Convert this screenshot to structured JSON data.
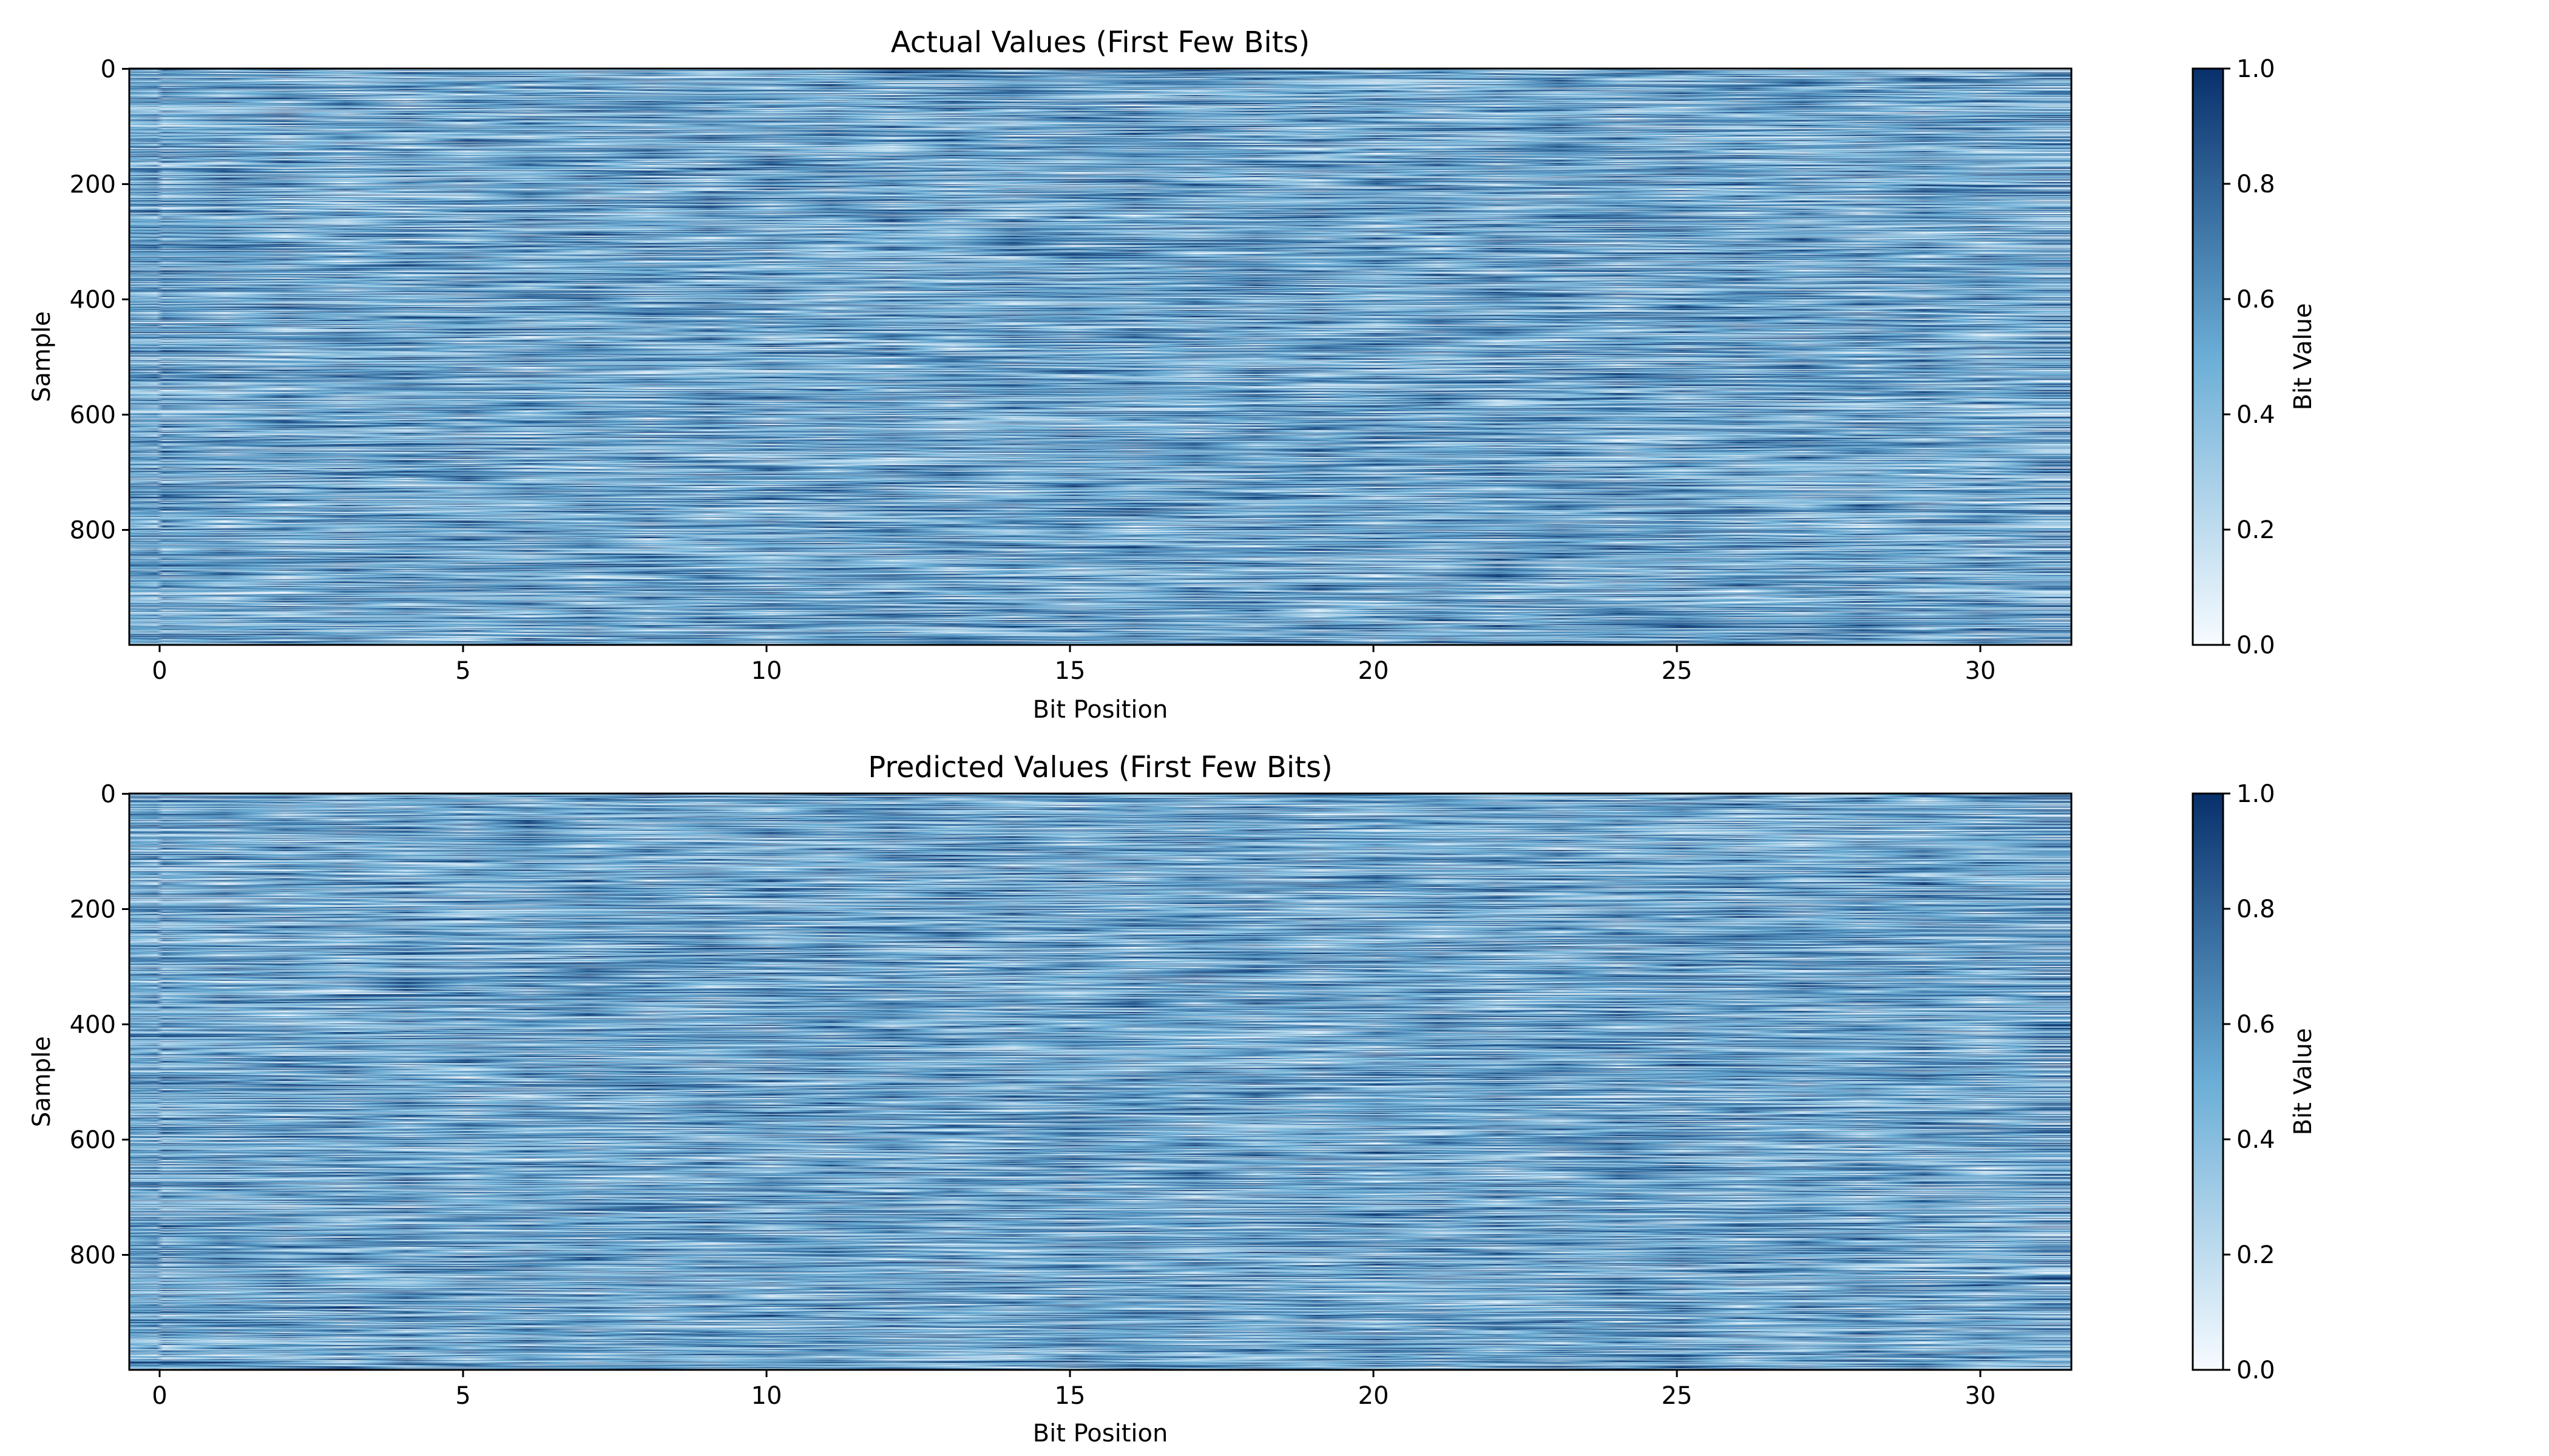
{
  "chart_data": [
    {
      "type": "heatmap",
      "title": "Actual Values (First Few Bits)",
      "xlabel": "Bit Position",
      "ylabel": "Sample",
      "x_ticks": [
        0,
        5,
        10,
        15,
        20,
        25,
        30
      ],
      "x_tick_labels": [
        "0",
        "5",
        "10",
        "15",
        "20",
        "25",
        "30"
      ],
      "y_ticks": [
        0,
        200,
        400,
        600,
        800
      ],
      "y_tick_labels": [
        "0",
        "200",
        "400",
        "600",
        "800"
      ],
      "xlim": [
        -0.5,
        31.5
      ],
      "ylim": [
        999.5,
        -0.5
      ],
      "n_rows": 1000,
      "n_cols": 32,
      "value_range": [
        0.0,
        1.0
      ],
      "values_note_seed": 17,
      "colormap": "Blues",
      "colors": {
        "low": "#f7fbff",
        "mid": "#6baed6",
        "high": "#08306b"
      },
      "colorbar": {
        "label": "Bit Value",
        "range": [
          0.0,
          1.0
        ],
        "ticks": [
          0.0,
          0.2,
          0.4,
          0.6,
          0.8,
          1.0
        ],
        "tick_labels": [
          "0.0",
          "0.2",
          "0.4",
          "0.6",
          "0.8",
          "1.0"
        ]
      }
    },
    {
      "type": "heatmap",
      "title": "Predicted Values (First Few Bits)",
      "xlabel": "Bit Position",
      "ylabel": "Sample",
      "x_ticks": [
        0,
        5,
        10,
        15,
        20,
        25,
        30
      ],
      "x_tick_labels": [
        "0",
        "5",
        "10",
        "15",
        "20",
        "25",
        "30"
      ],
      "y_ticks": [
        0,
        200,
        400,
        600,
        800
      ],
      "y_tick_labels": [
        "0",
        "200",
        "400",
        "600",
        "800"
      ],
      "xlim": [
        -0.5,
        31.5
      ],
      "ylim": [
        999.5,
        -0.5
      ],
      "n_rows": 1000,
      "n_cols": 32,
      "value_range": [
        0.0,
        1.0
      ],
      "values_note_seed": 53,
      "colormap": "Blues",
      "colors": {
        "low": "#f7fbff",
        "mid": "#6baed6",
        "high": "#08306b"
      },
      "colorbar": {
        "label": "Bit Value",
        "range": [
          0.0,
          1.0
        ],
        "ticks": [
          0.0,
          0.2,
          0.4,
          0.6,
          0.8,
          1.0
        ],
        "tick_labels": [
          "0.0",
          "0.2",
          "0.4",
          "0.6",
          "0.8",
          "1.0"
        ]
      }
    }
  ]
}
